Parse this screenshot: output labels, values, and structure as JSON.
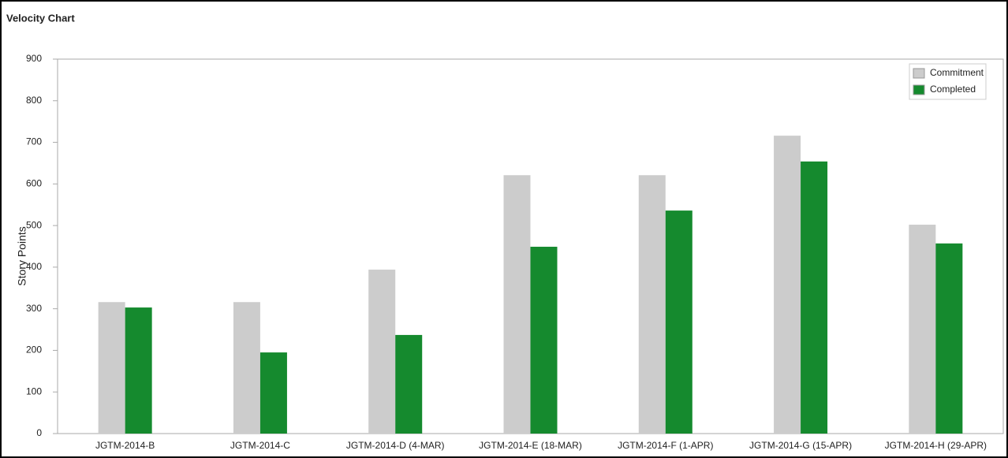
{
  "chart_data": {
    "type": "bar",
    "title": "Velocity Chart",
    "y_label": "Story Points",
    "categories": [
      "JGTM-2014-B",
      "JGTM-2014-C",
      "JGTM-2014-D (4-MAR)",
      "JGTM-2014-E (18-MAR)",
      "JGTM-2014-F (1-APR)",
      "JGTM-2014-G (15-APR)",
      "JGTM-2014-H (29-APR)"
    ],
    "series": [
      {
        "name": "Commitment",
        "color": "#cccccc",
        "values": [
          316,
          316,
          394,
          621,
          621,
          716,
          502
        ]
      },
      {
        "name": "Completed",
        "color": "#158a2e",
        "values": [
          303,
          195,
          237,
          449,
          536,
          654,
          457
        ]
      }
    ],
    "ylim": [
      0,
      900
    ],
    "yticks": [
      0,
      100,
      200,
      300,
      400,
      500,
      600,
      700,
      800,
      900
    ],
    "legend": "top-right"
  }
}
